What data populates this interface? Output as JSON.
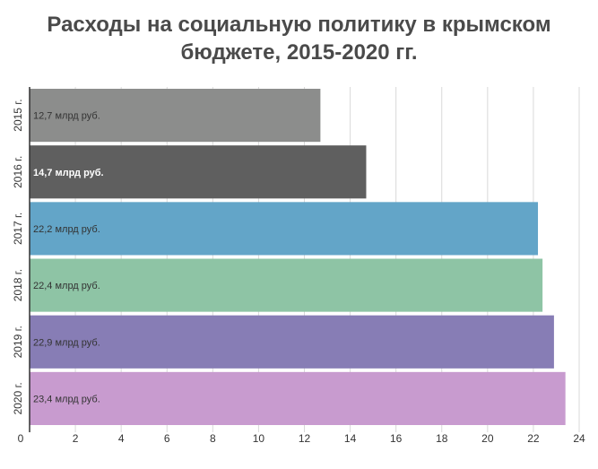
{
  "chart_data": {
    "type": "bar",
    "orientation": "horizontal",
    "title": "Расходы на социальную политику в крымском бюджете, 2015-2020 гг.",
    "title_lines": [
      "Расходы на социальную политику в крымском",
      "бюджете, 2015-2020 гг."
    ],
    "categories": [
      "2015 г.",
      "2016 г.",
      "2017 г.",
      "2018 г.",
      "2019 г.",
      "2020 г."
    ],
    "values": [
      12.7,
      14.7,
      22.2,
      22.4,
      22.9,
      23.4
    ],
    "data_labels": [
      "12,7 млрд руб.",
      "14,7 млрд руб.",
      "22,2 млрд руб.",
      "22,4 млрд руб.",
      "22,9 млрд руб.",
      "23,4 млрд руб."
    ],
    "colors": [
      "#8c8d8c",
      "#5f5f5f",
      "#63a5c8",
      "#8ec4a5",
      "#877db5",
      "#c89bcf"
    ],
    "label_colors": [
      "#333333",
      "#ffffff",
      "#333333",
      "#333333",
      "#333333",
      "#333333"
    ],
    "xlim": [
      0,
      24
    ],
    "xticks": [
      0,
      2,
      4,
      6,
      8,
      10,
      12,
      14,
      16,
      18,
      20,
      22,
      24
    ],
    "grid": true,
    "xlabel": "",
    "ylabel": ""
  }
}
